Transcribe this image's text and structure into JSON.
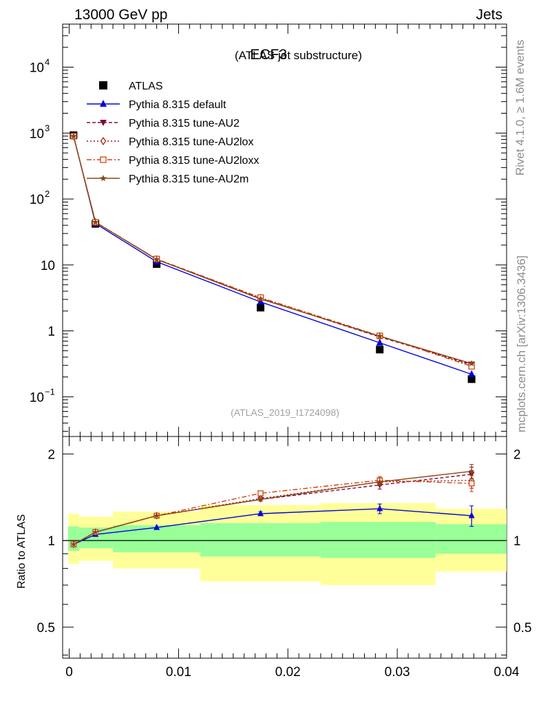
{
  "header": {
    "left": "13000 GeV pp",
    "right": "Jets"
  },
  "side_text": {
    "top": "Rivet 4.1.0, ≥ 1.6M events",
    "bottom": "mcplots.cern.ch [arXiv:1306.3436]"
  },
  "chart_data": {
    "type": "line",
    "title": "ECF3",
    "subtitle": "(ATLAS jet substructure)",
    "analysis": "(ATLAS_2019_I1724098)",
    "x": [
      0.0004,
      0.0024,
      0.008,
      0.0175,
      0.0284,
      0.0368
    ],
    "xlim": [
      -0.0006,
      0.04
    ],
    "xticks": [
      {
        "v": 0,
        "t": "0"
      },
      {
        "v": 0.01,
        "t": "0.01"
      },
      {
        "v": 0.02,
        "t": "0.02"
      },
      {
        "v": 0.03,
        "t": "0.03"
      },
      {
        "v": 0.04,
        "t": "0.04"
      }
    ],
    "upper": {
      "yscale": "log",
      "ylim": [
        0.025,
        45000
      ],
      "yticks": [
        {
          "v": 0.1,
          "t": "10",
          "sup": "−1"
        },
        {
          "v": 1,
          "t": "1",
          "sup": ""
        },
        {
          "v": 10,
          "t": "10",
          "sup": ""
        },
        {
          "v": 100,
          "t": "10",
          "sup": "2"
        },
        {
          "v": 1000,
          "t": "10",
          "sup": "3"
        },
        {
          "v": 10000,
          "t": "10",
          "sup": "4"
        }
      ],
      "data": {
        "name": "ATLAS",
        "values": [
          930,
          42,
          10.3,
          2.25,
          0.52,
          0.185
        ]
      },
      "series": [
        {
          "name": "Pythia 8.315 default",
          "color": "#0000dd",
          "dash": "",
          "marker": "triangle-up",
          "values": [
            905,
            42.5,
            11.2,
            2.75,
            0.66,
            0.22
          ]
        },
        {
          "name": "Pythia 8.315 tune-AU2",
          "color": "#7a0a3c",
          "dash": "5,3",
          "marker": "triangle-down",
          "values": [
            895,
            44.5,
            12.2,
            3.1,
            0.81,
            0.31
          ]
        },
        {
          "name": "Pythia 8.315 tune-AU2lox",
          "color": "#aa1111",
          "dash": "2,3",
          "marker": "diamond-open",
          "values": [
            895,
            44.5,
            12.2,
            3.15,
            0.83,
            0.3
          ]
        },
        {
          "name": "Pythia 8.315 tune-AU2loxx",
          "color": "#cc4411",
          "dash": "7,3,2,3",
          "marker": "square-open",
          "values": [
            895,
            44.5,
            12.3,
            3.2,
            0.84,
            0.29
          ]
        },
        {
          "name": "Pythia 8.315 tune-AU2m",
          "color": "#8b4513",
          "dash": "",
          "marker": "star",
          "values": [
            895,
            44.5,
            12.1,
            3.05,
            0.83,
            0.32
          ]
        }
      ]
    },
    "ratio": {
      "ylabel": "Ratio to ATLAS",
      "yscale": "log",
      "ylim": [
        0.39,
        2.3
      ],
      "yticks": [
        {
          "v": 0.5,
          "t": "0.5"
        },
        {
          "v": 1,
          "t": "1"
        },
        {
          "v": 2,
          "t": "2"
        }
      ],
      "bins": [
        -0.0001,
        0.0009,
        0.004,
        0.012,
        0.023,
        0.0335,
        0.04
      ],
      "band_inner": [
        [
          0.92,
          1.12
        ],
        [
          0.94,
          1.11
        ],
        [
          0.91,
          1.13
        ],
        [
          0.88,
          1.15
        ],
        [
          0.87,
          1.16
        ],
        [
          0.9,
          1.14
        ]
      ],
      "band_outer": [
        [
          0.83,
          1.24
        ],
        [
          0.85,
          1.21
        ],
        [
          0.8,
          1.26
        ],
        [
          0.72,
          1.33
        ],
        [
          0.7,
          1.35
        ],
        [
          0.78,
          1.29
        ]
      ],
      "series": [
        {
          "values": [
            0.97,
            1.05,
            1.11,
            1.24,
            1.29,
            1.22
          ],
          "err": [
            0.01,
            0.01,
            0.01,
            0.02,
            0.05,
            0.1
          ]
        },
        {
          "values": [
            0.97,
            1.07,
            1.22,
            1.39,
            1.56,
            1.7
          ],
          "err": [
            0.01,
            0.01,
            0.01,
            0.02,
            0.05,
            0.1
          ]
        },
        {
          "values": [
            0.97,
            1.07,
            1.22,
            1.4,
            1.6,
            1.62
          ],
          "err": [
            0.01,
            0.01,
            0.01,
            0.02,
            0.05,
            0.1
          ]
        },
        {
          "values": [
            0.97,
            1.07,
            1.22,
            1.46,
            1.62,
            1.58
          ],
          "err": [
            0.01,
            0.01,
            0.01,
            0.02,
            0.05,
            0.1
          ]
        },
        {
          "values": [
            0.97,
            1.07,
            1.22,
            1.39,
            1.6,
            1.74
          ],
          "err": [
            0.01,
            0.01,
            0.01,
            0.02,
            0.05,
            0.1
          ]
        }
      ]
    }
  }
}
